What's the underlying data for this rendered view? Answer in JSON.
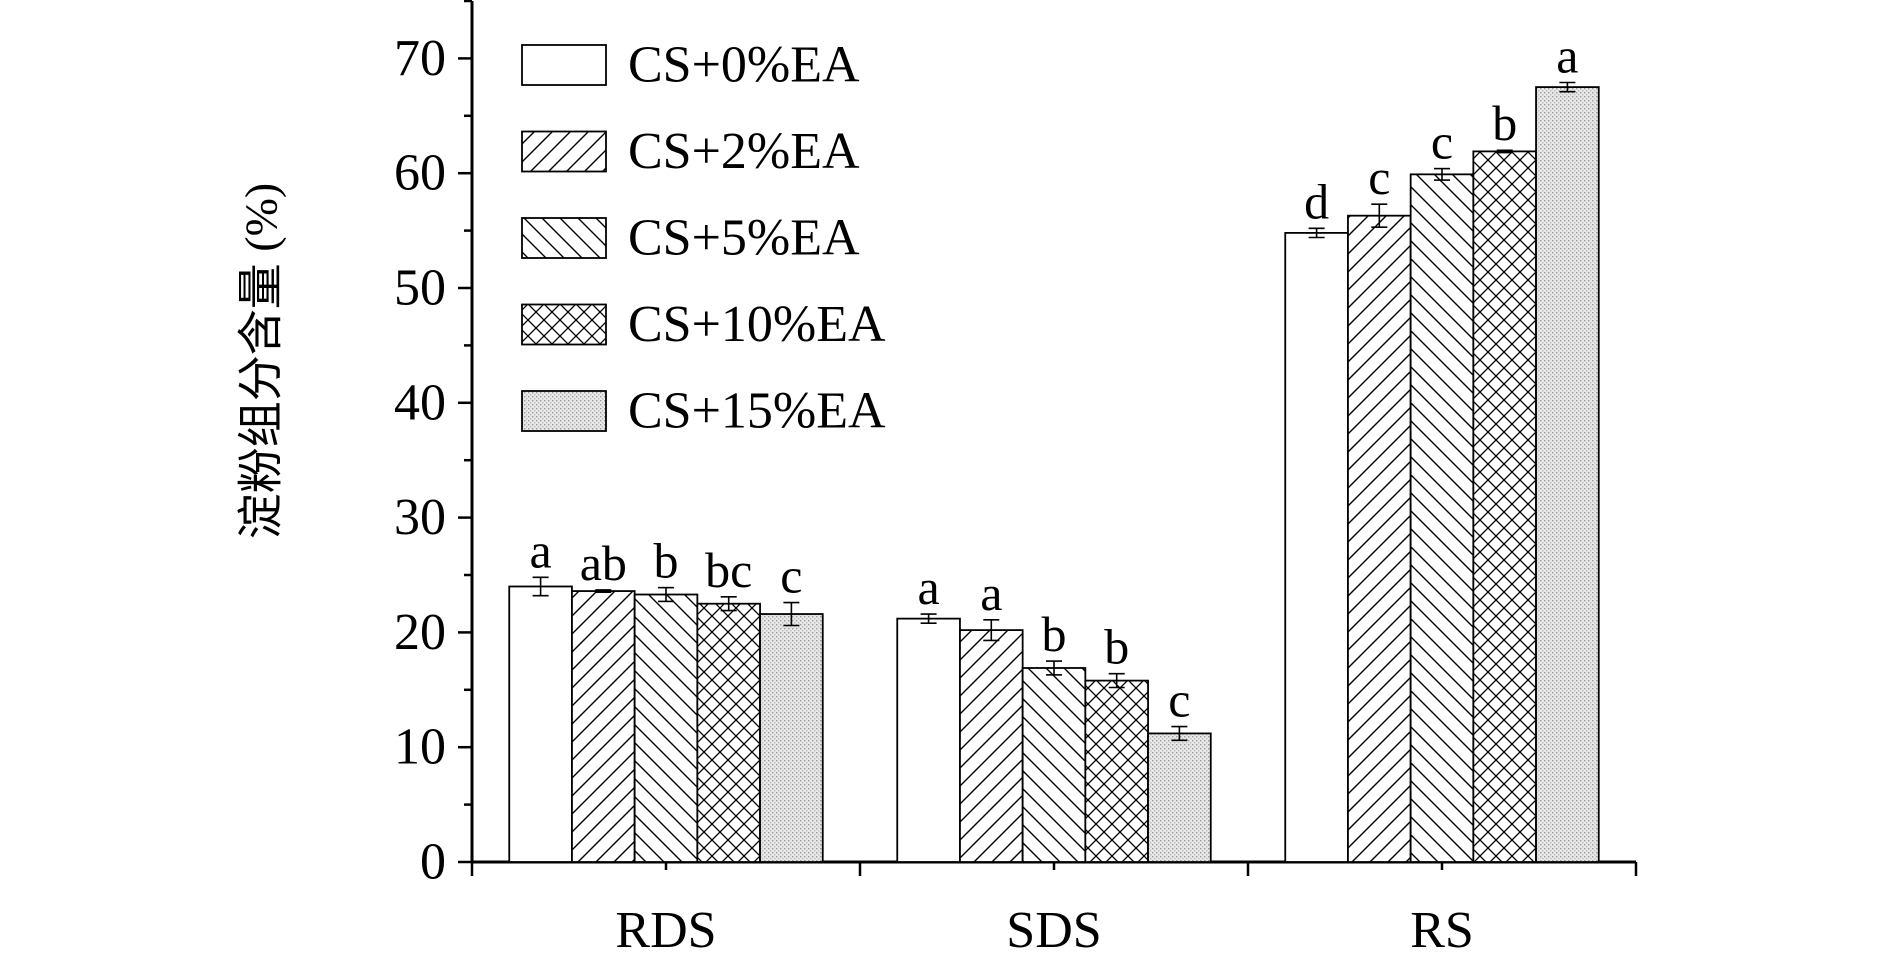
{
  "chart_data": {
    "type": "bar",
    "title": "",
    "xlabel": "",
    "ylabel": "淀粉组分含量 (%)",
    "ylim": [
      0,
      75
    ],
    "yticks": [
      0,
      10,
      20,
      30,
      40,
      50,
      60,
      70
    ],
    "grid": false,
    "legend_position": "top-left",
    "categories": [
      "RDS",
      "SDS",
      "RS"
    ],
    "series": [
      {
        "name": "CS+0%EA",
        "pattern": "none",
        "values": [
          24.0,
          21.2,
          54.8
        ],
        "errors": [
          0.8,
          0.4,
          0.4
        ],
        "labels": [
          "a",
          "a",
          "d"
        ]
      },
      {
        "name": "CS+2%EA",
        "pattern": "forward",
        "values": [
          23.6,
          20.2,
          56.3
        ],
        "errors": [
          0.1,
          0.9,
          1.0
        ],
        "labels": [
          "ab",
          "a",
          "c"
        ]
      },
      {
        "name": "CS+5%EA",
        "pattern": "backward",
        "values": [
          23.3,
          16.9,
          59.9
        ],
        "errors": [
          0.6,
          0.6,
          0.5
        ],
        "labels": [
          "b",
          "b",
          "c"
        ]
      },
      {
        "name": "CS+10%EA",
        "pattern": "crosshatch",
        "values": [
          22.5,
          15.8,
          61.9
        ],
        "errors": [
          0.6,
          0.6,
          0.1
        ],
        "labels": [
          "bc",
          "b",
          "b"
        ]
      },
      {
        "name": "CS+15%EA",
        "pattern": "dots",
        "values": [
          21.6,
          11.2,
          67.5
        ],
        "errors": [
          1.0,
          0.6,
          0.4
        ],
        "labels": [
          "c",
          "c",
          "a"
        ]
      }
    ]
  }
}
